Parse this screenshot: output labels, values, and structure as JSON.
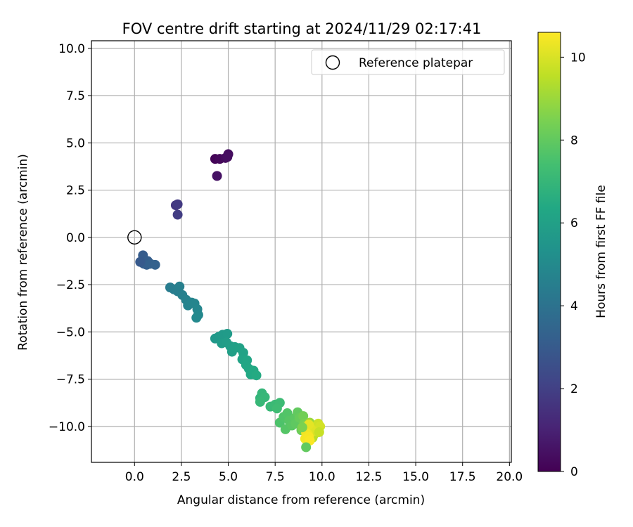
{
  "chart_data": {
    "type": "scatter",
    "title": "FOV centre drift starting at 2024/11/29 02:17:41",
    "xlabel": "Angular distance from reference (arcmin)",
    "ylabel": "Rotation from reference (arcmin)",
    "xlim": [
      -2.3,
      20.1
    ],
    "ylim": [
      -11.9,
      10.4
    ],
    "xticks": [
      0.0,
      2.5,
      5.0,
      7.5,
      10.0,
      12.5,
      15.0,
      17.5,
      20.0
    ],
    "xtick_labels": [
      "0.0",
      "2.5",
      "5.0",
      "7.5",
      "10.0",
      "12.5",
      "15.0",
      "17.5",
      "20.0"
    ],
    "yticks": [
      10.0,
      7.5,
      5.0,
      2.5,
      0.0,
      -2.5,
      -5.0,
      -7.5,
      -10.0
    ],
    "ytick_labels": [
      "10.0",
      "7.5",
      "5.0",
      "2.5",
      "0.0",
      "−2.5",
      "−5.0",
      "−7.5",
      "−10.0"
    ],
    "grid": true,
    "legend": {
      "position": "top-right",
      "entries": [
        "Reference platepar"
      ]
    },
    "reference_point": {
      "x": 0.0,
      "y": 0.0,
      "label": "Reference platepar"
    },
    "colorbar": {
      "label": "Hours from first FF file",
      "min": 0,
      "max": 10.6,
      "ticks": [
        0,
        2,
        4,
        6,
        8,
        10
      ],
      "tick_labels": [
        "0",
        "2",
        "4",
        "6",
        "8",
        "10"
      ],
      "colormap": "viridis"
    },
    "series": [
      {
        "values": [
          {
            "x": 4.3,
            "y": 4.15,
            "t": 0.1
          },
          {
            "x": 4.55,
            "y": 4.15,
            "t": 0.2
          },
          {
            "x": 4.85,
            "y": 4.2,
            "t": 0.3
          },
          {
            "x": 5.0,
            "y": 4.4,
            "t": 0.35
          },
          {
            "x": 4.95,
            "y": 4.25,
            "t": 0.4
          },
          {
            "x": 4.4,
            "y": 3.25,
            "t": 0.5
          },
          {
            "x": 2.2,
            "y": 1.7,
            "t": 1.7
          },
          {
            "x": 2.3,
            "y": 1.75,
            "t": 1.8
          },
          {
            "x": 2.3,
            "y": 1.2,
            "t": 1.9
          },
          {
            "x": 0.4,
            "y": -1.25,
            "t": 3.0
          },
          {
            "x": 0.45,
            "y": -0.95,
            "t": 3.05
          },
          {
            "x": 0.5,
            "y": -1.4,
            "t": 3.1
          },
          {
            "x": 0.7,
            "y": -1.25,
            "t": 3.15
          },
          {
            "x": 0.65,
            "y": -1.45,
            "t": 3.2
          },
          {
            "x": 0.85,
            "y": -1.4,
            "t": 3.25
          },
          {
            "x": 1.1,
            "y": -1.45,
            "t": 3.3
          },
          {
            "x": 0.3,
            "y": -1.3,
            "t": 3.0
          },
          {
            "x": 1.9,
            "y": -2.65,
            "t": 4.4
          },
          {
            "x": 2.1,
            "y": -2.75,
            "t": 4.45
          },
          {
            "x": 2.3,
            "y": -2.85,
            "t": 4.5
          },
          {
            "x": 2.4,
            "y": -2.6,
            "t": 4.55
          },
          {
            "x": 2.55,
            "y": -3.05,
            "t": 4.6
          },
          {
            "x": 2.75,
            "y": -3.3,
            "t": 4.65
          },
          {
            "x": 2.85,
            "y": -3.6,
            "t": 4.7
          },
          {
            "x": 3.05,
            "y": -3.45,
            "t": 4.75
          },
          {
            "x": 3.2,
            "y": -3.5,
            "t": 4.8
          },
          {
            "x": 3.35,
            "y": -3.8,
            "t": 4.85
          },
          {
            "x": 3.4,
            "y": -4.1,
            "t": 4.9
          },
          {
            "x": 3.3,
            "y": -4.25,
            "t": 4.95
          },
          {
            "x": 4.3,
            "y": -5.35,
            "t": 5.6
          },
          {
            "x": 4.5,
            "y": -5.25,
            "t": 5.65
          },
          {
            "x": 4.7,
            "y": -5.15,
            "t": 5.7
          },
          {
            "x": 4.95,
            "y": -5.1,
            "t": 5.75
          },
          {
            "x": 4.65,
            "y": -5.6,
            "t": 5.8
          },
          {
            "x": 4.9,
            "y": -5.55,
            "t": 5.85
          },
          {
            "x": 5.1,
            "y": -5.75,
            "t": 5.9
          },
          {
            "x": 5.2,
            "y": -6.05,
            "t": 5.95
          },
          {
            "x": 5.35,
            "y": -5.8,
            "t": 6.0
          },
          {
            "x": 5.6,
            "y": -5.85,
            "t": 6.05
          },
          {
            "x": 5.8,
            "y": -6.1,
            "t": 6.1
          },
          {
            "x": 5.75,
            "y": -6.45,
            "t": 6.15
          },
          {
            "x": 6.0,
            "y": -6.5,
            "t": 6.2
          },
          {
            "x": 5.95,
            "y": -6.75,
            "t": 6.25
          },
          {
            "x": 6.1,
            "y": -6.95,
            "t": 6.3
          },
          {
            "x": 6.2,
            "y": -7.25,
            "t": 6.35
          },
          {
            "x": 6.35,
            "y": -7.05,
            "t": 6.4
          },
          {
            "x": 6.5,
            "y": -7.3,
            "t": 6.45
          },
          {
            "x": 6.7,
            "y": -8.5,
            "t": 6.9
          },
          {
            "x": 6.8,
            "y": -8.25,
            "t": 6.95
          },
          {
            "x": 6.95,
            "y": -8.45,
            "t": 7.0
          },
          {
            "x": 6.7,
            "y": -8.7,
            "t": 7.05
          },
          {
            "x": 7.25,
            "y": -8.95,
            "t": 7.1
          },
          {
            "x": 7.5,
            "y": -8.85,
            "t": 7.15
          },
          {
            "x": 7.75,
            "y": -8.75,
            "t": 7.2
          },
          {
            "x": 7.6,
            "y": -9.05,
            "t": 7.25
          },
          {
            "x": 7.75,
            "y": -9.8,
            "t": 7.6
          },
          {
            "x": 7.95,
            "y": -9.5,
            "t": 7.65
          },
          {
            "x": 8.15,
            "y": -9.3,
            "t": 7.7
          },
          {
            "x": 8.05,
            "y": -10.15,
            "t": 7.75
          },
          {
            "x": 8.25,
            "y": -9.7,
            "t": 7.8
          },
          {
            "x": 8.4,
            "y": -9.95,
            "t": 7.85
          },
          {
            "x": 8.55,
            "y": -9.55,
            "t": 7.9
          },
          {
            "x": 8.6,
            "y": -9.85,
            "t": 7.95
          },
          {
            "x": 8.7,
            "y": -9.25,
            "t": 8.0
          },
          {
            "x": 8.8,
            "y": -9.55,
            "t": 8.1
          },
          {
            "x": 8.9,
            "y": -10.2,
            "t": 8.2
          },
          {
            "x": 9.0,
            "y": -9.45,
            "t": 8.3
          },
          {
            "x": 9.05,
            "y": -9.85,
            "t": 8.4
          },
          {
            "x": 9.15,
            "y": -9.95,
            "t": 8.6
          },
          {
            "x": 9.25,
            "y": -10.15,
            "t": 8.8
          },
          {
            "x": 9.35,
            "y": -9.8,
            "t": 9.0
          },
          {
            "x": 9.45,
            "y": -10.25,
            "t": 9.2
          },
          {
            "x": 9.6,
            "y": -10.4,
            "t": 9.4
          },
          {
            "x": 9.5,
            "y": -10.6,
            "t": 9.5
          },
          {
            "x": 9.7,
            "y": -10.05,
            "t": 9.6
          },
          {
            "x": 9.8,
            "y": -9.85,
            "t": 9.8
          },
          {
            "x": 9.9,
            "y": -10.0,
            "t": 9.9
          },
          {
            "x": 9.6,
            "y": -10.25,
            "t": 10.0
          },
          {
            "x": 9.4,
            "y": -10.1,
            "t": 10.1
          },
          {
            "x": 9.3,
            "y": -9.9,
            "t": 10.2
          },
          {
            "x": 9.25,
            "y": -10.4,
            "t": 10.3
          },
          {
            "x": 9.15,
            "y": -10.35,
            "t": 10.4
          },
          {
            "x": 9.1,
            "y": -10.65,
            "t": 10.45
          },
          {
            "x": 9.3,
            "y": -10.55,
            "t": 10.5
          },
          {
            "x": 9.35,
            "y": -10.75,
            "t": 10.55
          },
          {
            "x": 9.15,
            "y": -11.1,
            "t": 8.0
          },
          {
            "x": 8.95,
            "y": -10.05,
            "t": 8.5
          },
          {
            "x": 9.85,
            "y": -10.3,
            "t": 9.7
          }
        ]
      }
    ]
  }
}
